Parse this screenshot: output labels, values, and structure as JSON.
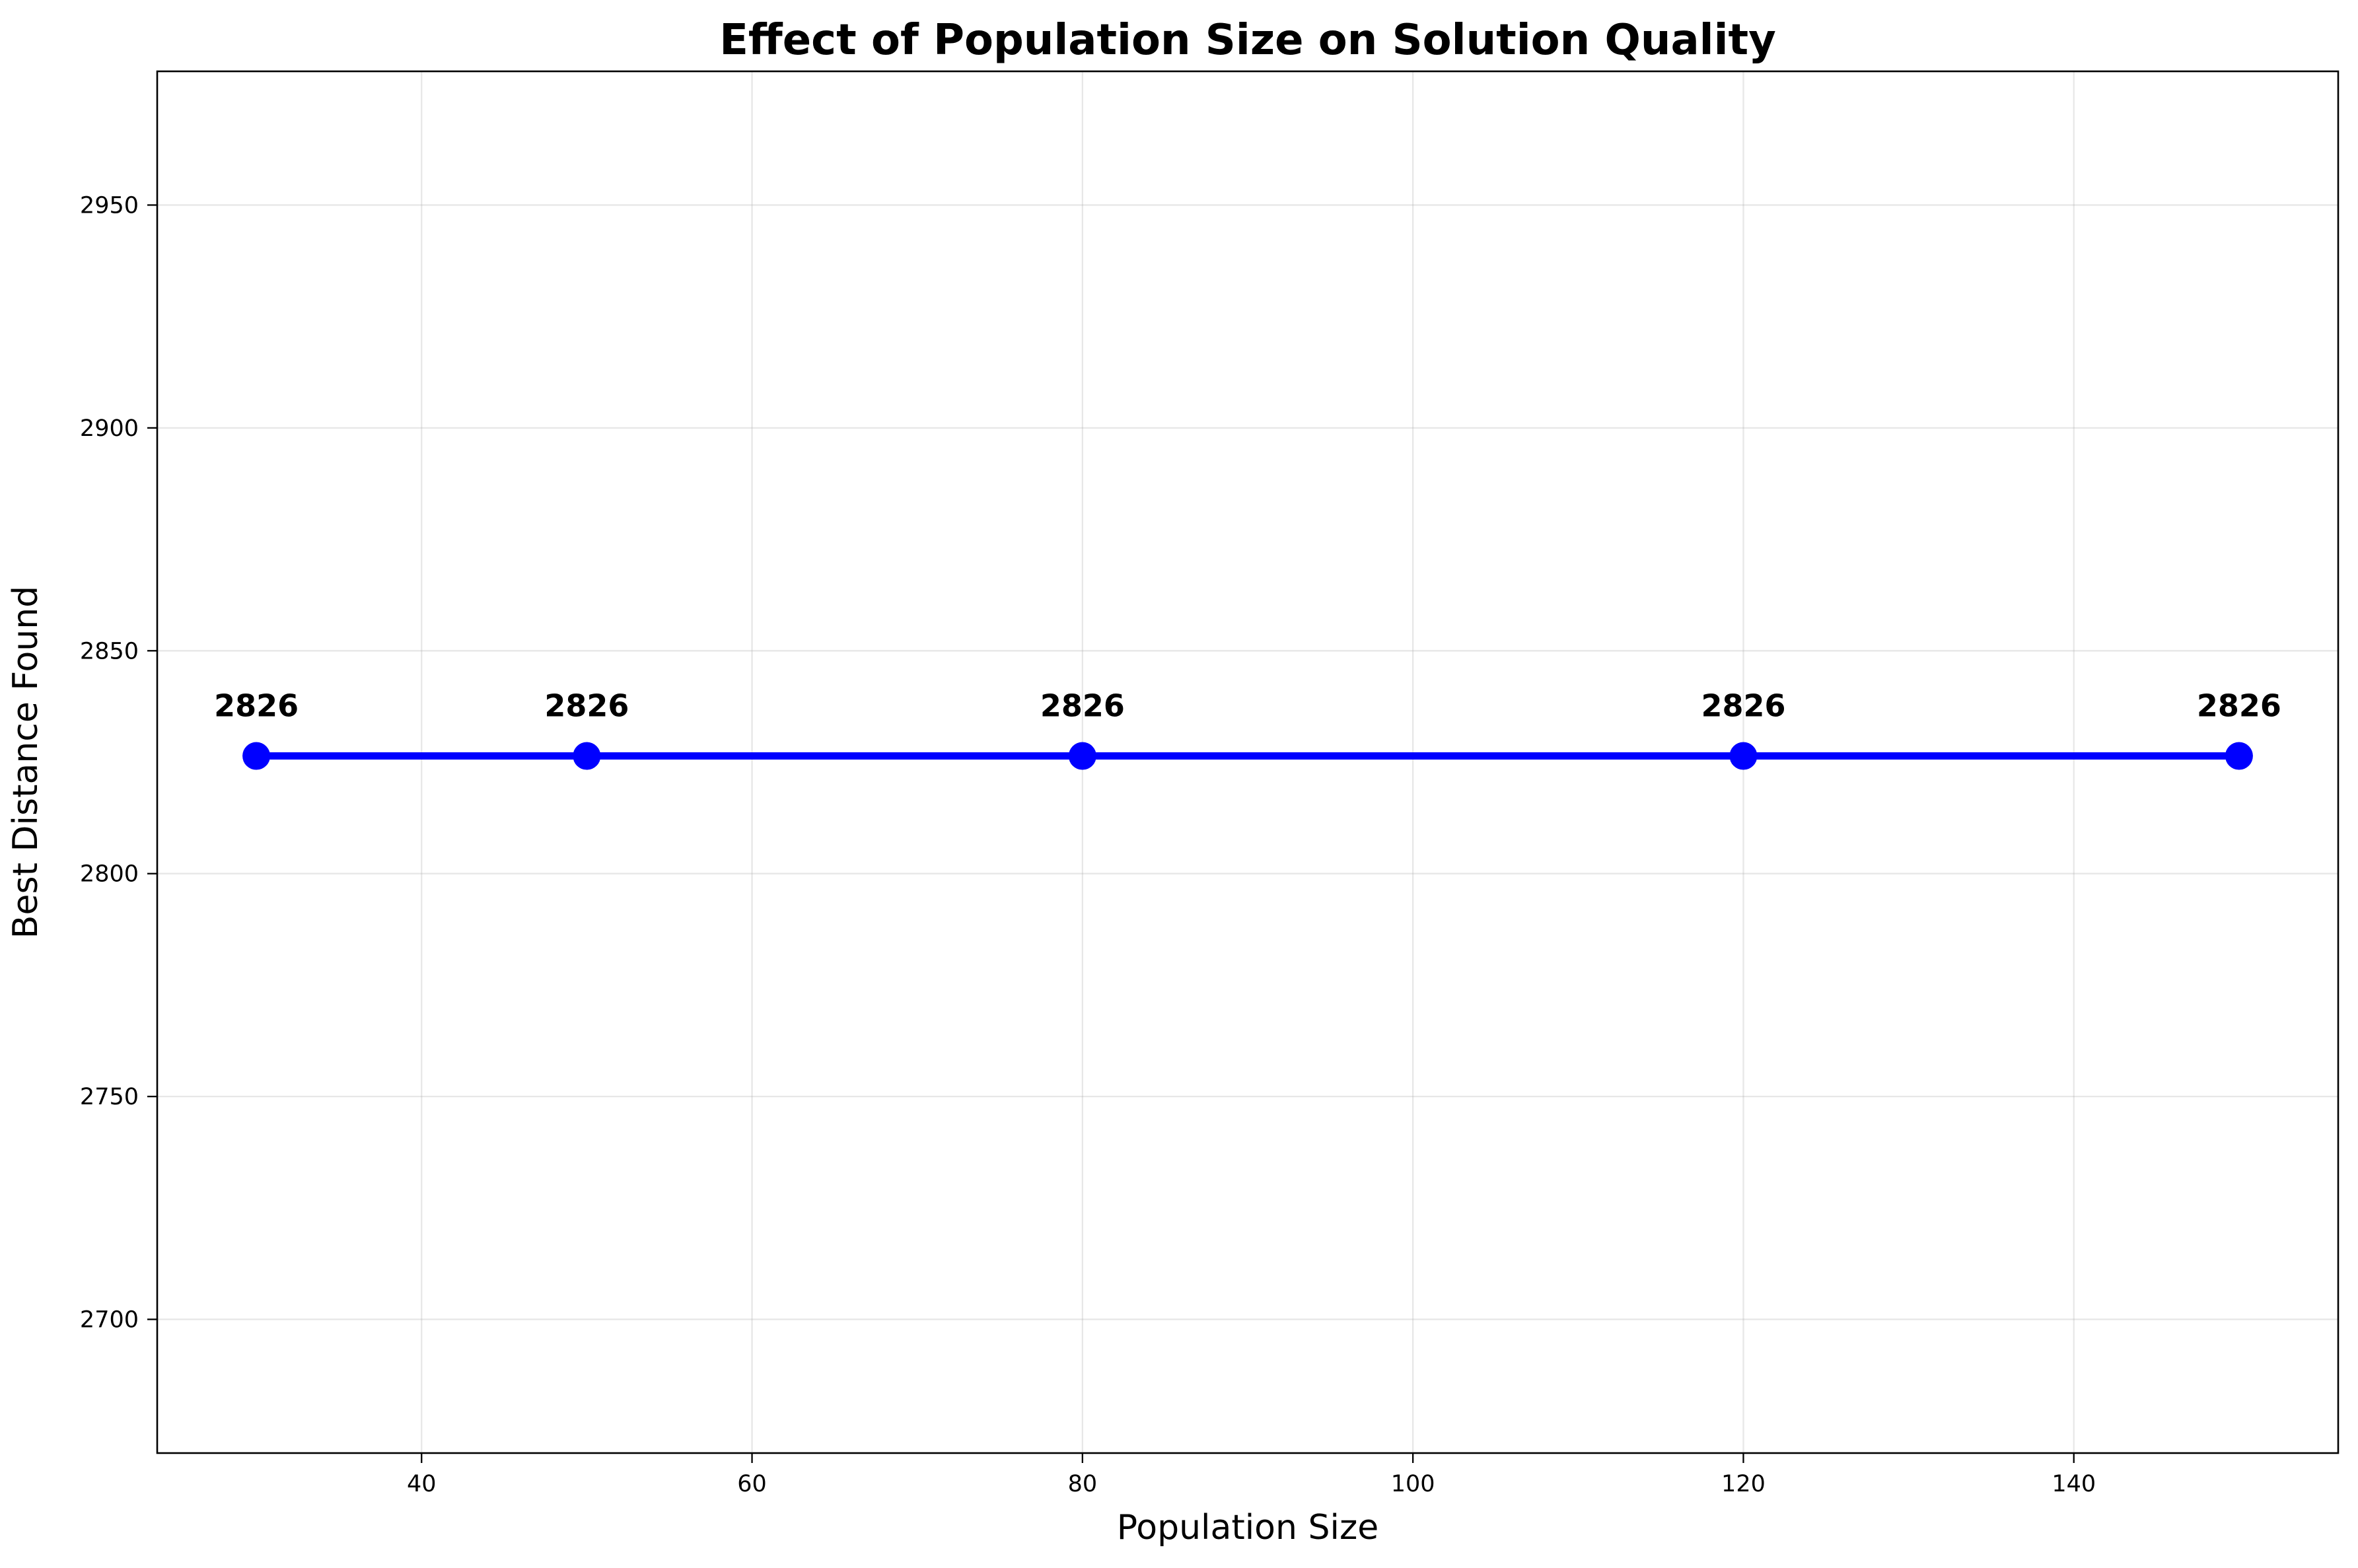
{
  "chart_data": {
    "type": "line",
    "title": "Effect of Population Size on Solution Quality",
    "xlabel": "Population Size",
    "ylabel": "Best Distance Found",
    "x": [
      30,
      50,
      80,
      120,
      150
    ],
    "series": [
      {
        "values": [
          2826.4,
          2826.4,
          2826.4,
          2826.4,
          2826.4
        ],
        "data_labels": [
          "2826",
          "2826",
          "2826",
          "2826",
          "2826"
        ]
      }
    ],
    "xlim": [
      24,
      156
    ],
    "ylim": [
      2670,
      2980
    ],
    "x_ticks": [
      40,
      60,
      80,
      100,
      120,
      140
    ],
    "y_ticks": [
      2700,
      2750,
      2800,
      2850,
      2900,
      2950
    ],
    "grid": true,
    "legend": "none",
    "colors": {
      "series": "#0000ff",
      "markers": "#0000ff"
    }
  }
}
